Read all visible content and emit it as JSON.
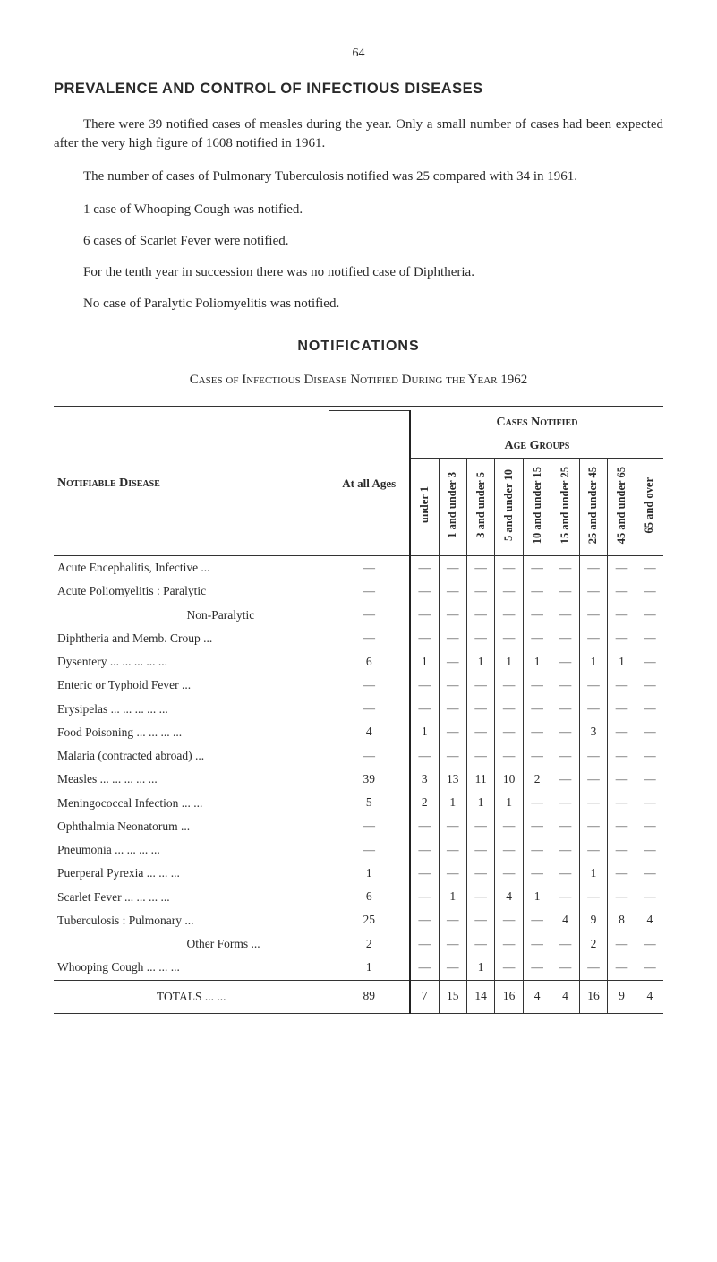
{
  "page_number": "64",
  "title": "PREVALENCE AND CONTROL OF INFECTIOUS DISEASES",
  "paragraphs": {
    "p1": "There were 39 notified cases of measles during the year. Only a small number of cases had been expected after the very high figure of 1608 notified in 1961.",
    "p2": "The number of cases of Pulmonary Tuberculosis notified was 25 compared with 34 in 1961.",
    "p3": "1 case of Whooping Cough was notified.",
    "p4": "6 cases of Scarlet Fever were notified.",
    "p5": "For the tenth year in succession there was no notified case of Diphtheria.",
    "p6": "No case of Paralytic Poliomyelitis was notified."
  },
  "subtitle": "NOTIFICATIONS",
  "table_caption": "Cases of Infectious Disease Notified During the Year 1962",
  "table": {
    "super_header": "Cases Notified",
    "age_groups_label": "Age Groups",
    "disease_header": "Notifiable Disease",
    "ages_header": "At all Ages",
    "columns": [
      "under 1",
      "1 and under 3",
      "3 and under 5",
      "5 and under 10",
      "10 and under 15",
      "15 and under 25",
      "25 and under 45",
      "45 and under 65",
      "65 and over"
    ],
    "rows": [
      {
        "label": "Acute Encephalitis, Infective ...",
        "ages": "—",
        "cells": [
          "—",
          "—",
          "—",
          "—",
          "—",
          "—",
          "—",
          "—",
          "—"
        ]
      },
      {
        "label": "Acute Poliomyelitis : Paralytic",
        "ages": "—",
        "cells": [
          "—",
          "—",
          "—",
          "—",
          "—",
          "—",
          "—",
          "—",
          "—"
        ]
      },
      {
        "label": "Non-Paralytic",
        "indent": true,
        "ages": "—",
        "cells": [
          "—",
          "—",
          "—",
          "—",
          "—",
          "—",
          "—",
          "—",
          "—"
        ]
      },
      {
        "label": "Diphtheria and Memb. Croup ...",
        "ages": "—",
        "cells": [
          "—",
          "—",
          "—",
          "—",
          "—",
          "—",
          "—",
          "—",
          "—"
        ]
      },
      {
        "label": "Dysentery ...  ...  ...  ...  ...",
        "ages": "6",
        "cells": [
          "1",
          "—",
          "1",
          "1",
          "1",
          "—",
          "1",
          "1",
          "—"
        ]
      },
      {
        "label": "Enteric or Typhoid Fever    ...",
        "ages": "—",
        "cells": [
          "—",
          "—",
          "—",
          "—",
          "—",
          "—",
          "—",
          "—",
          "—"
        ]
      },
      {
        "label": "Erysipelas ...  ...  ...  ...  ...",
        "ages": "—",
        "cells": [
          "—",
          "—",
          "—",
          "—",
          "—",
          "—",
          "—",
          "—",
          "—"
        ]
      },
      {
        "label": "Food Poisoning ...  ...  ...  ...",
        "ages": "4",
        "cells": [
          "1",
          "—",
          "—",
          "—",
          "—",
          "—",
          "3",
          "—",
          "—"
        ]
      },
      {
        "label": "Malaria (contracted abroad) ...",
        "ages": "—",
        "cells": [
          "—",
          "—",
          "—",
          "—",
          "—",
          "—",
          "—",
          "—",
          "—"
        ]
      },
      {
        "label": "Measles      ...  ...  ...  ...  ...",
        "ages": "39",
        "cells": [
          "3",
          "13",
          "11",
          "10",
          "2",
          "—",
          "—",
          "—",
          "—"
        ]
      },
      {
        "label": "Meningococcal Infection ...  ...",
        "ages": "5",
        "cells": [
          "2",
          "1",
          "1",
          "1",
          "—",
          "—",
          "—",
          "—",
          "—"
        ]
      },
      {
        "label": "Ophthalmia Neonatorum     ...",
        "ages": "—",
        "cells": [
          "—",
          "—",
          "—",
          "—",
          "—",
          "—",
          "—",
          "—",
          "—"
        ]
      },
      {
        "label": "Pneumonia       ...  ...  ...  ...",
        "ages": "—",
        "cells": [
          "—",
          "—",
          "—",
          "—",
          "—",
          "—",
          "—",
          "—",
          "—"
        ]
      },
      {
        "label": "Puerperal Pyrexia   ...  ...  ...",
        "ages": "1",
        "cells": [
          "—",
          "—",
          "—",
          "—",
          "—",
          "—",
          "1",
          "—",
          "—"
        ]
      },
      {
        "label": "Scarlet Fever     ...  ...  ...  ...",
        "ages": "6",
        "cells": [
          "—",
          "1",
          "—",
          "4",
          "1",
          "—",
          "—",
          "—",
          "—"
        ]
      },
      {
        "label": "Tuberculosis : Pulmonary    ...",
        "ages": "25",
        "cells": [
          "—",
          "—",
          "—",
          "—",
          "—",
          "4",
          "9",
          "8",
          "4"
        ]
      },
      {
        "label": "Other Forms   ...",
        "indent": true,
        "ages": "2",
        "cells": [
          "—",
          "—",
          "—",
          "—",
          "—",
          "—",
          "2",
          "—",
          "—"
        ]
      },
      {
        "label": "Whooping Cough     ...  ...  ...",
        "ages": "1",
        "cells": [
          "—",
          "—",
          "1",
          "—",
          "—",
          "—",
          "—",
          "—",
          "—"
        ]
      }
    ],
    "totals": {
      "label": "TOTALS      ...  ...",
      "ages": "89",
      "cells": [
        "7",
        "15",
        "14",
        "16",
        "4",
        "4",
        "16",
        "9",
        "4"
      ]
    }
  }
}
